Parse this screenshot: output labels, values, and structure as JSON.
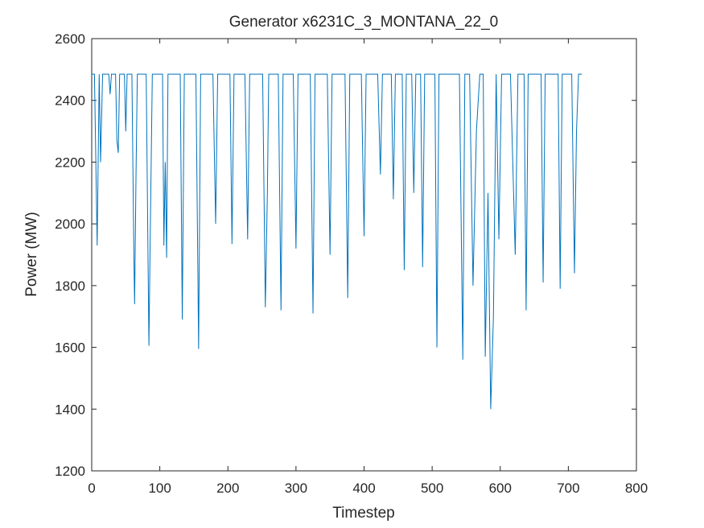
{
  "chart_data": {
    "type": "line",
    "title": "Generator x6231C_3_MONTANA_22_0",
    "x_label": "Timestep",
    "y_label": "Power (MW)",
    "x": [
      0,
      4,
      8,
      11,
      13,
      16,
      25,
      27,
      29,
      35,
      37,
      39,
      41,
      48,
      50,
      52,
      59,
      62,
      63,
      65,
      67,
      80,
      84,
      86,
      89,
      104,
      106,
      108,
      110,
      112,
      130,
      133,
      136,
      153,
      157,
      160,
      178,
      182,
      185,
      203,
      206,
      209,
      225,
      229,
      232,
      251,
      255,
      258,
      260,
      274,
      278,
      281,
      296,
      300,
      303,
      321,
      325,
      328,
      346,
      350,
      353,
      372,
      376,
      379,
      396,
      400,
      403,
      420,
      424,
      427,
      440,
      443,
      446,
      456,
      459,
      462,
      470,
      473,
      476,
      483,
      486,
      489,
      504,
      507,
      510,
      540,
      545,
      548,
      555,
      560,
      565,
      570,
      575,
      578,
      582,
      586,
      590,
      594,
      598,
      602,
      615,
      622,
      626,
      635,
      638,
      641,
      660,
      663,
      666,
      685,
      688,
      691,
      705,
      709,
      712,
      715,
      720
    ],
    "series": [
      {
        "color": "#0072bd",
        "values": [
          2485,
          2485,
          1930,
          2485,
          2200,
          2485,
          2485,
          2420,
          2485,
          2485,
          2270,
          2230,
          2485,
          2485,
          2300,
          2485,
          2485,
          1880,
          1740,
          2150,
          2485,
          2485,
          1605,
          1970,
          2485,
          2485,
          1930,
          2200,
          1890,
          2485,
          2485,
          1690,
          2485,
          2485,
          1595,
          2485,
          2485,
          2000,
          2485,
          2485,
          1935,
          2485,
          2485,
          1950,
          2485,
          2485,
          1730,
          2100,
          2485,
          2485,
          1720,
          2485,
          2485,
          1920,
          2485,
          2485,
          1710,
          2485,
          2485,
          1900,
          2485,
          2485,
          1760,
          2485,
          2485,
          1960,
          2485,
          2485,
          2160,
          2485,
          2485,
          2080,
          2485,
          2485,
          1850,
          2485,
          2485,
          2100,
          2485,
          2485,
          1860,
          2485,
          2485,
          1600,
          2485,
          2485,
          1560,
          2485,
          2485,
          1800,
          2300,
          2485,
          2485,
          1570,
          2100,
          1400,
          1700,
          2485,
          1950,
          2485,
          2485,
          1900,
          2485,
          2485,
          1720,
          2485,
          2485,
          1810,
          2485,
          2485,
          1790,
          2485,
          2485,
          1840,
          2300,
          2485,
          2485
        ]
      }
    ],
    "xlim": [
      0,
      800
    ],
    "xticks": [
      0,
      100,
      200,
      300,
      400,
      500,
      600,
      700,
      800
    ],
    "ylim": [
      1200,
      2600
    ],
    "yticks": [
      1200,
      1400,
      1600,
      1800,
      2000,
      2200,
      2400,
      2600
    ]
  }
}
